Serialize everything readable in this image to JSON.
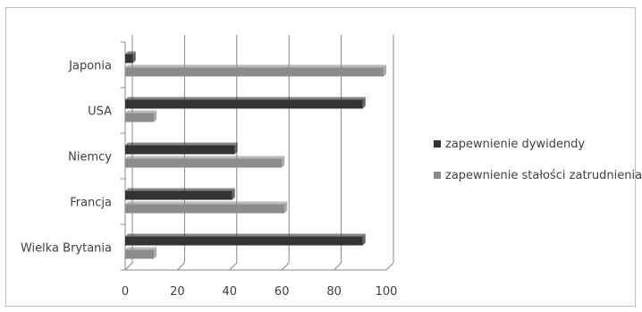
{
  "chart_data": {
    "type": "bar",
    "orientation": "horizontal",
    "categories": [
      "Japonia",
      "USA",
      "Niemcy",
      "Francja",
      "Wielka Brytania"
    ],
    "series": [
      {
        "name": "zapewnienie dywidendy",
        "color": "#333333",
        "values": [
          3,
          91,
          42,
          41,
          91
        ]
      },
      {
        "name": "zapewnienie stałości zatrudnienia",
        "color": "#8c8c8c",
        "values": [
          99,
          11,
          60,
          61,
          11
        ]
      }
    ],
    "x_ticks": [
      "0",
      "20",
      "40",
      "60",
      "80",
      "100"
    ],
    "xlim": [
      0,
      100
    ],
    "legend_position": "right",
    "grid": true,
    "title": "",
    "xlabel": "",
    "ylabel": ""
  }
}
